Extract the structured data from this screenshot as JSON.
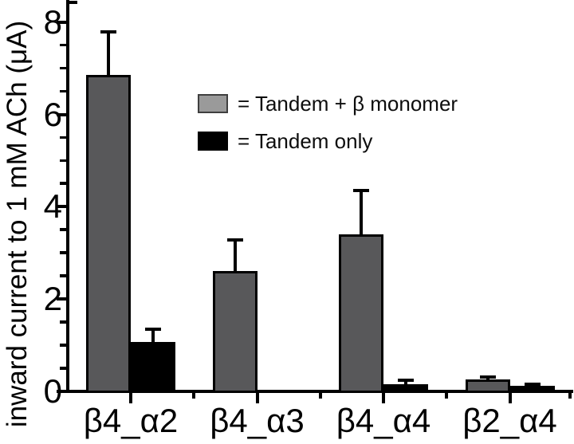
{
  "figure": {
    "background": "#ffffff",
    "text_color": "#000000"
  },
  "chart_data": {
    "type": "bar",
    "title": "",
    "xlabel": "",
    "ylabel": "inward current to 1 mM ACh (μA)",
    "ylim": [
      0,
      8.5
    ],
    "yticks_major": [
      0,
      2,
      4,
      6,
      8
    ],
    "ytick_minor_step": 0.5,
    "grid": false,
    "categories": [
      "β4_α2",
      "β4_α3",
      "β4_α4",
      "β2_α4"
    ],
    "series": [
      {
        "name": "Tandem + β monomer",
        "color": "#58585a",
        "values": [
          6.85,
          2.6,
          3.4,
          0.26
        ],
        "errors": [
          0.95,
          0.7,
          0.97,
          0.06
        ]
      },
      {
        "name": "Tandem only",
        "color": "#000000",
        "values": [
          1.07,
          0,
          0.16,
          0.12
        ],
        "errors": [
          0.3,
          0,
          0.1,
          0.05
        ]
      }
    ],
    "legend": {
      "position": "upper-middle",
      "items": [
        {
          "swatch_color": "#9a9a9a",
          "label": "= Tandem + β monomer"
        },
        {
          "swatch_color": "#000000",
          "label": "= Tandem only"
        }
      ]
    }
  }
}
